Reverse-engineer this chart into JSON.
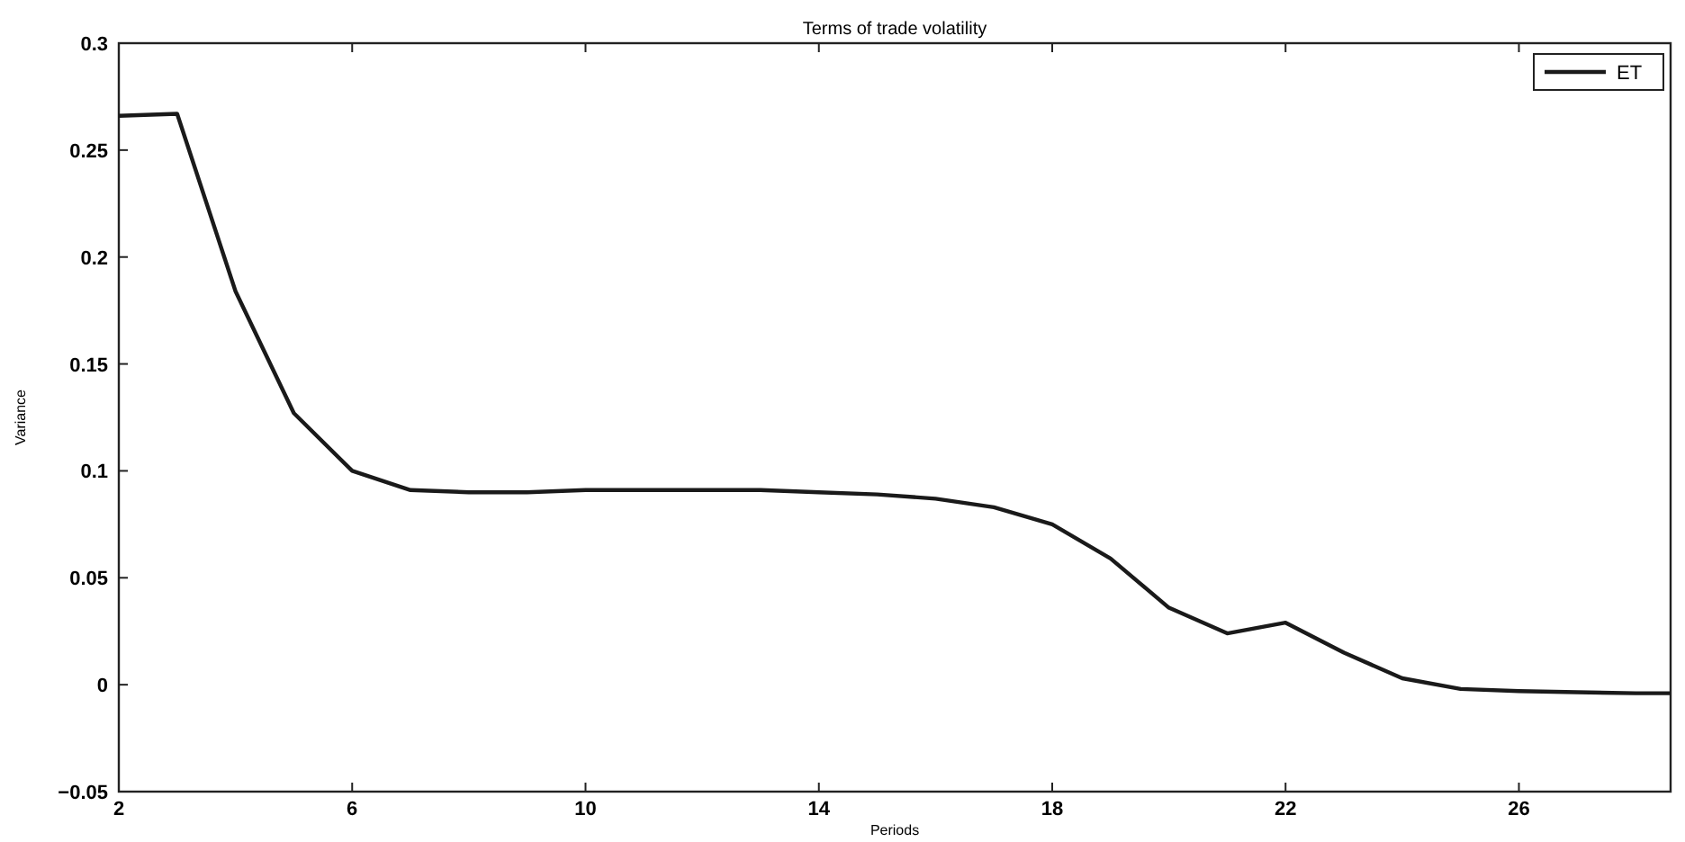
{
  "chart_data": {
    "type": "line",
    "title": "Terms of trade volatility",
    "xlabel": "Periods",
    "ylabel": "Variance",
    "x": [
      2,
      3,
      4,
      5,
      6,
      7,
      8,
      9,
      10,
      11,
      12,
      13,
      14,
      15,
      16,
      17,
      18,
      19,
      20,
      21,
      22,
      23,
      24,
      25,
      26,
      27,
      28,
      28.6
    ],
    "series": [
      {
        "name": "ET",
        "color": "#1a1a1a",
        "values": [
          0.266,
          0.267,
          0.184,
          0.127,
          0.1,
          0.091,
          0.09,
          0.09,
          0.091,
          0.091,
          0.091,
          0.091,
          0.09,
          0.089,
          0.087,
          0.083,
          0.075,
          0.059,
          0.036,
          0.024,
          0.029,
          0.015,
          0.003,
          -0.002,
          -0.003,
          -0.0035,
          -0.004,
          -0.004
        ]
      }
    ],
    "xlim": [
      2,
      28.6
    ],
    "xticks": [
      2,
      6,
      10,
      14,
      18,
      22,
      26
    ],
    "ylim": [
      -0.05,
      0.3
    ],
    "yticks": [
      -0.05,
      0,
      0.05,
      0.1,
      0.15,
      0.2,
      0.25,
      0.3
    ],
    "grid": false,
    "legend": "top right",
    "marker": "none",
    "line_style": "solid"
  }
}
